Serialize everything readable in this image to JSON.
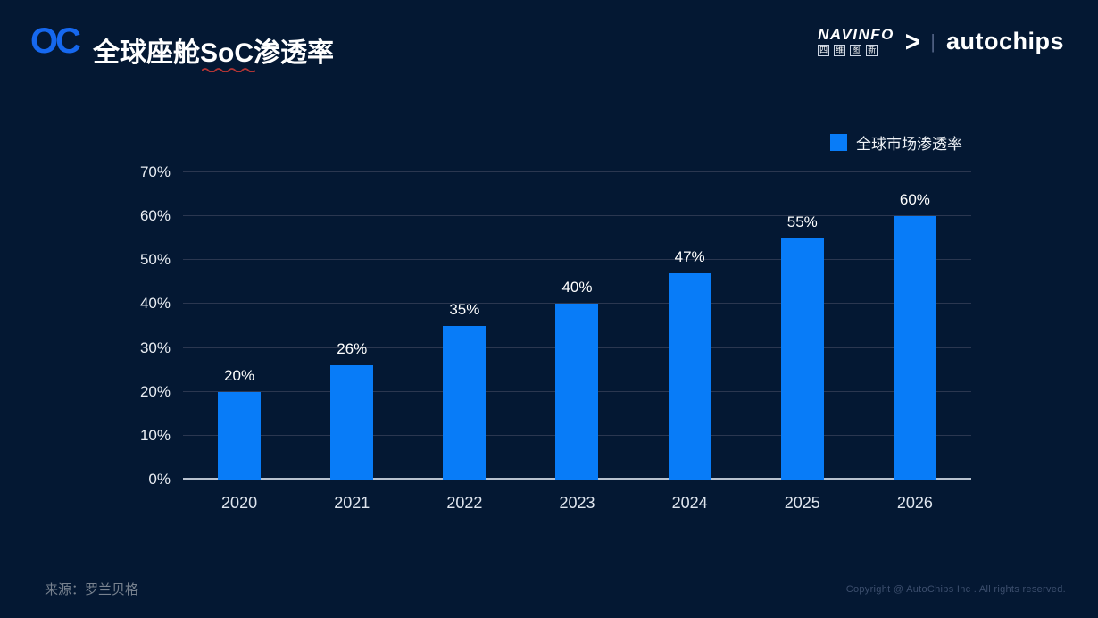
{
  "header": {
    "logo_text": "OC",
    "title_prefix": "全球座舱",
    "title_highlight": "SoC",
    "title_suffix": "渗透率",
    "brand": {
      "navinfo_en": "NAVINFO",
      "navinfo_cn_chars": [
        "四",
        "维",
        "图",
        "新"
      ],
      "chevron": ">",
      "divider": "|",
      "autochips": "autochips"
    }
  },
  "legend": {
    "label": "全球市场渗透率",
    "color": "#087cf8"
  },
  "chart_data": {
    "type": "bar",
    "title": "全球座舱SoC渗透率",
    "categories": [
      "2020",
      "2021",
      "2022",
      "2023",
      "2024",
      "2025",
      "2026"
    ],
    "values": [
      20,
      26,
      35,
      40,
      47,
      55,
      60
    ],
    "value_labels": [
      "20%",
      "26%",
      "35%",
      "40%",
      "47%",
      "55%",
      "60%"
    ],
    "series_name": "全球市场渗透率",
    "xlabel": "",
    "ylabel": "",
    "ylim": [
      0,
      70
    ],
    "ytick_step": 10,
    "ytick_labels": [
      "0%",
      "10%",
      "20%",
      "30%",
      "40%",
      "50%",
      "60%",
      "70%"
    ],
    "grid": true,
    "legend_position": "top-right",
    "bar_color": "#087cf8"
  },
  "colors": {
    "background": "#041833",
    "bar": "#087cf8",
    "logo_blue": "#1668ef",
    "spellcheck_underline": "#b23535",
    "gridline": "#2b3750",
    "baseline": "#b9c2cf"
  },
  "footer": {
    "source": "来源：罗兰贝格",
    "copyright": "Copyright @ AutoChips Inc . All rights reserved."
  }
}
